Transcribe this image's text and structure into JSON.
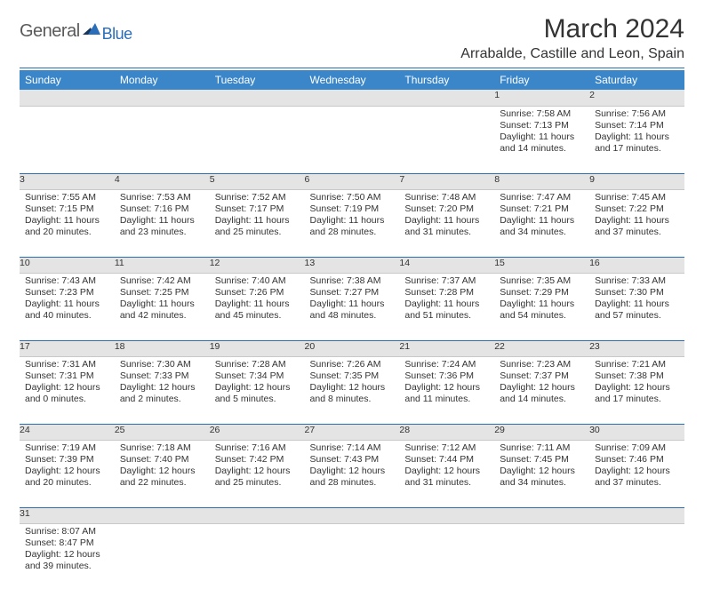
{
  "logo": {
    "word1": "General",
    "word2": "Blue",
    "color1": "#5a5a5a",
    "color2": "#2a6db8"
  },
  "title": "March 2024",
  "location": "Arrabalde, Castille and Leon, Spain",
  "colors": {
    "header_bg": "#3a86c8",
    "header_fg": "#ffffff",
    "daynum_bg": "#e4e4e4",
    "rule": "#2a6db8"
  },
  "day_names": [
    "Sunday",
    "Monday",
    "Tuesday",
    "Wednesday",
    "Thursday",
    "Friday",
    "Saturday"
  ],
  "weeks": [
    [
      null,
      null,
      null,
      null,
      null,
      {
        "n": "1",
        "sr": "7:58 AM",
        "ss": "7:13 PM",
        "dl": "11 hours and 14 minutes."
      },
      {
        "n": "2",
        "sr": "7:56 AM",
        "ss": "7:14 PM",
        "dl": "11 hours and 17 minutes."
      }
    ],
    [
      {
        "n": "3",
        "sr": "7:55 AM",
        "ss": "7:15 PM",
        "dl": "11 hours and 20 minutes."
      },
      {
        "n": "4",
        "sr": "7:53 AM",
        "ss": "7:16 PM",
        "dl": "11 hours and 23 minutes."
      },
      {
        "n": "5",
        "sr": "7:52 AM",
        "ss": "7:17 PM",
        "dl": "11 hours and 25 minutes."
      },
      {
        "n": "6",
        "sr": "7:50 AM",
        "ss": "7:19 PM",
        "dl": "11 hours and 28 minutes."
      },
      {
        "n": "7",
        "sr": "7:48 AM",
        "ss": "7:20 PM",
        "dl": "11 hours and 31 minutes."
      },
      {
        "n": "8",
        "sr": "7:47 AM",
        "ss": "7:21 PM",
        "dl": "11 hours and 34 minutes."
      },
      {
        "n": "9",
        "sr": "7:45 AM",
        "ss": "7:22 PM",
        "dl": "11 hours and 37 minutes."
      }
    ],
    [
      {
        "n": "10",
        "sr": "7:43 AM",
        "ss": "7:23 PM",
        "dl": "11 hours and 40 minutes."
      },
      {
        "n": "11",
        "sr": "7:42 AM",
        "ss": "7:25 PM",
        "dl": "11 hours and 42 minutes."
      },
      {
        "n": "12",
        "sr": "7:40 AM",
        "ss": "7:26 PM",
        "dl": "11 hours and 45 minutes."
      },
      {
        "n": "13",
        "sr": "7:38 AM",
        "ss": "7:27 PM",
        "dl": "11 hours and 48 minutes."
      },
      {
        "n": "14",
        "sr": "7:37 AM",
        "ss": "7:28 PM",
        "dl": "11 hours and 51 minutes."
      },
      {
        "n": "15",
        "sr": "7:35 AM",
        "ss": "7:29 PM",
        "dl": "11 hours and 54 minutes."
      },
      {
        "n": "16",
        "sr": "7:33 AM",
        "ss": "7:30 PM",
        "dl": "11 hours and 57 minutes."
      }
    ],
    [
      {
        "n": "17",
        "sr": "7:31 AM",
        "ss": "7:31 PM",
        "dl": "12 hours and 0 minutes."
      },
      {
        "n": "18",
        "sr": "7:30 AM",
        "ss": "7:33 PM",
        "dl": "12 hours and 2 minutes."
      },
      {
        "n": "19",
        "sr": "7:28 AM",
        "ss": "7:34 PM",
        "dl": "12 hours and 5 minutes."
      },
      {
        "n": "20",
        "sr": "7:26 AM",
        "ss": "7:35 PM",
        "dl": "12 hours and 8 minutes."
      },
      {
        "n": "21",
        "sr": "7:24 AM",
        "ss": "7:36 PM",
        "dl": "12 hours and 11 minutes."
      },
      {
        "n": "22",
        "sr": "7:23 AM",
        "ss": "7:37 PM",
        "dl": "12 hours and 14 minutes."
      },
      {
        "n": "23",
        "sr": "7:21 AM",
        "ss": "7:38 PM",
        "dl": "12 hours and 17 minutes."
      }
    ],
    [
      {
        "n": "24",
        "sr": "7:19 AM",
        "ss": "7:39 PM",
        "dl": "12 hours and 20 minutes."
      },
      {
        "n": "25",
        "sr": "7:18 AM",
        "ss": "7:40 PM",
        "dl": "12 hours and 22 minutes."
      },
      {
        "n": "26",
        "sr": "7:16 AM",
        "ss": "7:42 PM",
        "dl": "12 hours and 25 minutes."
      },
      {
        "n": "27",
        "sr": "7:14 AM",
        "ss": "7:43 PM",
        "dl": "12 hours and 28 minutes."
      },
      {
        "n": "28",
        "sr": "7:12 AM",
        "ss": "7:44 PM",
        "dl": "12 hours and 31 minutes."
      },
      {
        "n": "29",
        "sr": "7:11 AM",
        "ss": "7:45 PM",
        "dl": "12 hours and 34 minutes."
      },
      {
        "n": "30",
        "sr": "7:09 AM",
        "ss": "7:46 PM",
        "dl": "12 hours and 37 minutes."
      }
    ],
    [
      {
        "n": "31",
        "sr": "8:07 AM",
        "ss": "8:47 PM",
        "dl": "12 hours and 39 minutes."
      },
      null,
      null,
      null,
      null,
      null,
      null
    ]
  ],
  "labels": {
    "sunrise": "Sunrise: ",
    "sunset": "Sunset: ",
    "daylight": "Daylight: "
  }
}
